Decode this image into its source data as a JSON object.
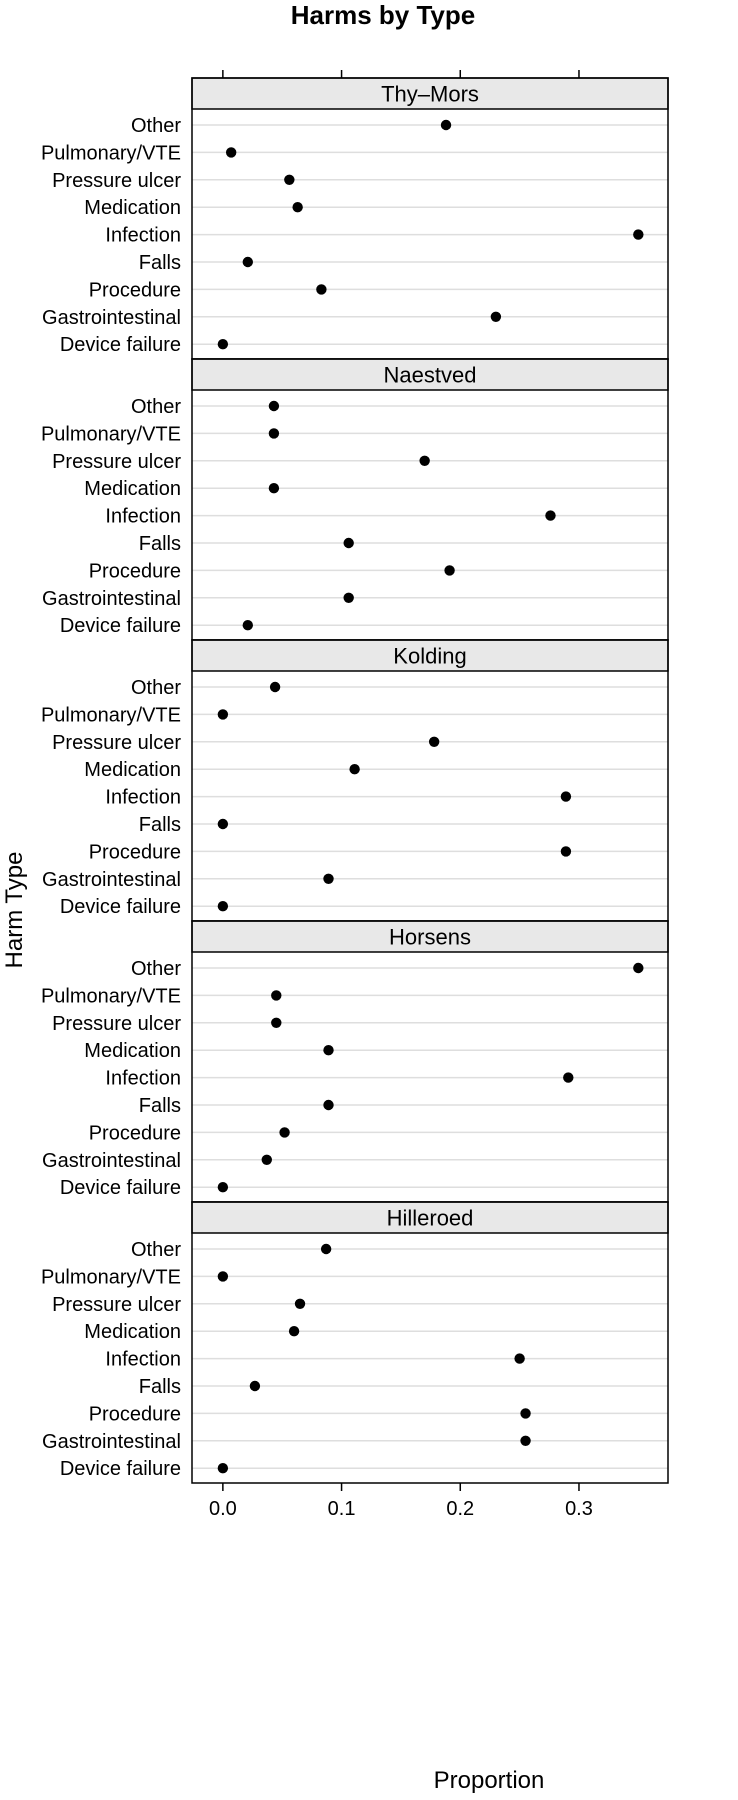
{
  "chart_data": {
    "type": "scatter",
    "title": "Harms by Type",
    "xlabel": "Proportion",
    "ylabel": "Harm Type",
    "xlim": [
      -0.026,
      0.375
    ],
    "xticks": [
      0.0,
      0.1,
      0.2,
      0.3
    ],
    "xtick_labels": [
      "0.0",
      "0.1",
      "0.2",
      "0.3"
    ],
    "grid": "horizontal",
    "categories": [
      "Other",
      "Pulmonary/VTE",
      "Pressure ulcer",
      "Medication",
      "Infection",
      "Falls",
      "Procedure",
      "Gastrointestinal",
      "Device failure"
    ],
    "panels": [
      {
        "name": "Thy–Mors",
        "values": [
          0.188,
          0.007,
          0.056,
          0.063,
          0.35,
          0.021,
          0.083,
          0.23,
          0.0
        ]
      },
      {
        "name": "Naestved",
        "values": [
          0.043,
          0.043,
          0.17,
          0.043,
          0.276,
          0.106,
          0.191,
          0.106,
          0.021
        ]
      },
      {
        "name": "Kolding",
        "values": [
          0.044,
          0.0,
          0.178,
          0.111,
          0.289,
          0.0,
          0.289,
          0.089,
          0.0
        ]
      },
      {
        "name": "Horsens",
        "values": [
          0.35,
          0.045,
          0.045,
          0.089,
          0.291,
          0.089,
          0.052,
          0.037,
          0.0
        ]
      },
      {
        "name": "Hilleroed",
        "values": [
          0.087,
          0.0,
          0.065,
          0.06,
          0.25,
          0.027,
          0.255,
          0.255,
          0.0
        ]
      }
    ],
    "colors": {
      "point": "#000000",
      "strip": "#e8e8e8",
      "grid": "#dedede",
      "frame": "#000000"
    }
  }
}
